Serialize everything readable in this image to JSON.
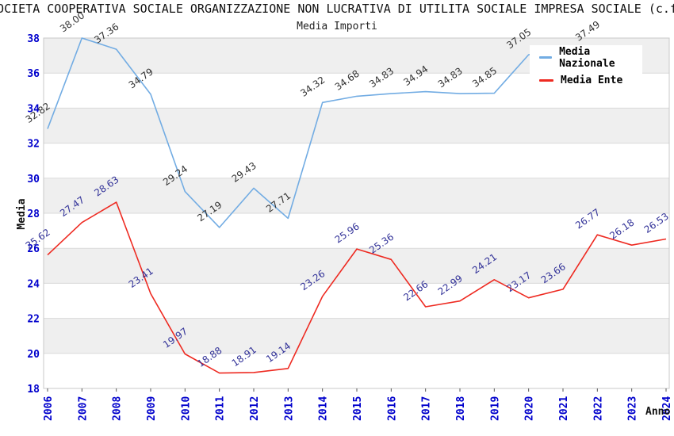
{
  "header": {
    "title": "SOCIETA COOPERATIVA SOCIALE ORGANIZZAZIONE NON LUCRATIVA DI UTILITA SOCIALE IMPRESA SOCIALE (c.f.",
    "subtitle": "Media Importi"
  },
  "legend": {
    "items": [
      {
        "label": "Media Nazionale",
        "color": "#72ACE3"
      },
      {
        "label": "Media Ente",
        "color": "#EE2A21"
      }
    ]
  },
  "axes": {
    "y_title": "Media",
    "x_title": "Anno",
    "tick_label_color": "#0000CC"
  },
  "chart_data": {
    "type": "line",
    "title": "Media Importi",
    "x": [
      2006,
      2007,
      2008,
      2009,
      2010,
      2011,
      2012,
      2013,
      2014,
      2015,
      2016,
      2017,
      2018,
      2019,
      2020,
      2021,
      2022,
      2023,
      2024
    ],
    "series": [
      {
        "name": "Media Nazionale",
        "color": "#72ACE3",
        "label_color": "#333333",
        "values": [
          32.82,
          38.0,
          37.36,
          34.79,
          29.24,
          27.19,
          29.43,
          27.71,
          34.32,
          34.68,
          34.83,
          34.94,
          34.83,
          34.85,
          37.05,
          null,
          37.49,
          null,
          null
        ]
      },
      {
        "name": "Media Ente",
        "color": "#EE2A21",
        "label_color": "#333399",
        "values": [
          25.62,
          27.47,
          28.63,
          23.41,
          19.97,
          18.88,
          18.91,
          19.14,
          23.26,
          25.96,
          25.36,
          22.66,
          22.99,
          24.21,
          23.17,
          23.66,
          26.77,
          26.18,
          26.53
        ]
      }
    ],
    "xlabel": "Anno",
    "ylabel": "Media",
    "ylim": [
      18,
      38
    ],
    "ytick_step": 2,
    "grid": "horizontal-bands",
    "legend_position": "top-right",
    "style": {
      "band_fill": "#EFEFEF",
      "gridline": "#DADADA",
      "plot_border": "#C8C8C8",
      "axis_tick_label": "#0000CC",
      "axis_title_color": "#111111"
    }
  }
}
